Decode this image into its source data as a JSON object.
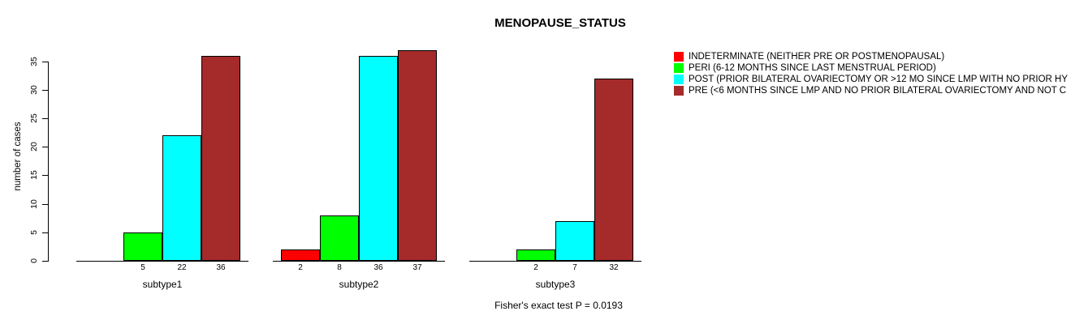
{
  "chart_data": {
    "type": "bar",
    "title": "MENOPAUSE_STATUS",
    "ylabel": "number of cases",
    "ylim": [
      0,
      35
    ],
    "yticks": [
      "0",
      "5",
      "10",
      "15",
      "20",
      "25",
      "30",
      "35"
    ],
    "categories": [
      "subtype1",
      "subtype2",
      "subtype3"
    ],
    "series": [
      {
        "name": "INDETERMINATE (NEITHER PRE OR POSTMENOPAUSAL)",
        "color": "#FF0000",
        "values": [
          0,
          2,
          0
        ]
      },
      {
        "name": "PERI (6-12 MONTHS SINCE LAST MENSTRUAL PERIOD)",
        "color": "#00FF00",
        "values": [
          5,
          8,
          2
        ]
      },
      {
        "name": "POST (PRIOR BILATERAL OVARIECTOMY OR >12 MO SINCE LMP WITH NO PRIOR HY",
        "color": "#00FFFF",
        "values": [
          22,
          36,
          7
        ]
      },
      {
        "name": "PRE (<6 MONTHS SINCE LMP AND NO PRIOR BILATERAL OVARIECTOMY AND NOT C",
        "color": "#A52A2A",
        "values": [
          36,
          37,
          32
        ]
      }
    ],
    "bar_labels": [
      [
        "",
        "5",
        "22",
        "36"
      ],
      [
        "2",
        "8",
        "36",
        "37"
      ],
      [
        "",
        "2",
        "7",
        "32"
      ]
    ],
    "legend_position": "right",
    "grid": false,
    "annotation": "Fisher's exact test P = 0.0193"
  }
}
